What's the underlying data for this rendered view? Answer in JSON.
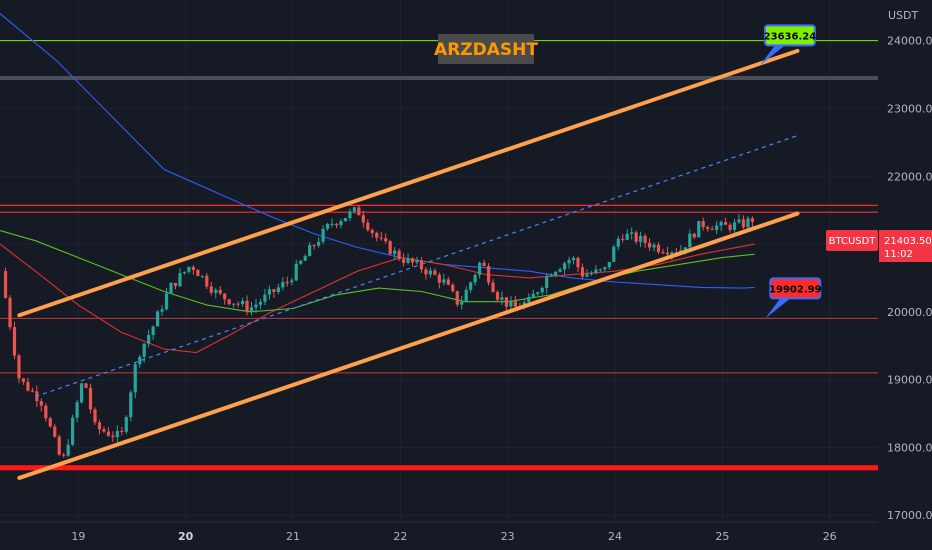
{
  "title": "ARZDASHT",
  "symbol": "BTCUSDT",
  "currency": "USDT",
  "last_price": "21403.50",
  "countdown": "11:02",
  "colors": {
    "background": "#161a25",
    "up": "#26a69a",
    "down": "#ef5350",
    "channel": "#ffa04c",
    "target": "#7ff000",
    "support": "#ff1a1a"
  },
  "chart_data": {
    "type": "candlestick",
    "ylim": [
      16900,
      24600
    ],
    "y_ticks": [
      "17000.00",
      "18000.00",
      "19000.00",
      "20000.00",
      "21000.00",
      "22000.00",
      "23000.00",
      "24000.00"
    ],
    "x_ticks": [
      {
        "label": "19",
        "x": 19
      },
      {
        "label": "20",
        "x": 20,
        "bold": true
      },
      {
        "label": "21",
        "x": 21
      },
      {
        "label": "22",
        "x": 22
      },
      {
        "label": "23",
        "x": 23
      },
      {
        "label": "24",
        "x": 24
      },
      {
        "label": "25",
        "x": 25
      },
      {
        "label": "26",
        "x": 26
      }
    ],
    "xlim": [
      18.27,
      26.45
    ],
    "anchors": [
      [
        18.28,
        20600
      ],
      [
        18.45,
        19000
      ],
      [
        18.65,
        18700
      ],
      [
        18.85,
        17750
      ],
      [
        19.05,
        19050
      ],
      [
        19.15,
        18300
      ],
      [
        19.3,
        18200
      ],
      [
        19.4,
        18150
      ],
      [
        19.55,
        19350
      ],
      [
        19.7,
        19800
      ],
      [
        19.85,
        20350
      ],
      [
        20.05,
        20700
      ],
      [
        20.3,
        20250
      ],
      [
        20.6,
        20050
      ],
      [
        20.95,
        20450
      ],
      [
        21.15,
        20900
      ],
      [
        21.35,
        21300
      ],
      [
        21.6,
        21500
      ],
      [
        21.8,
        21050
      ],
      [
        22.0,
        20800
      ],
      [
        22.2,
        20650
      ],
      [
        22.4,
        20450
      ],
      [
        22.55,
        20100
      ],
      [
        22.75,
        20750
      ],
      [
        22.9,
        20250
      ],
      [
        23.05,
        20050
      ],
      [
        23.2,
        20150
      ],
      [
        23.4,
        20600
      ],
      [
        23.6,
        20800
      ],
      [
        23.7,
        20550
      ],
      [
        23.9,
        20600
      ],
      [
        24.05,
        21150
      ],
      [
        24.25,
        21050
      ],
      [
        24.4,
        20950
      ],
      [
        24.6,
        20900
      ],
      [
        24.8,
        21300
      ],
      [
        25.0,
        21250
      ],
      [
        25.2,
        21300
      ],
      [
        25.32,
        21403.5
      ]
    ],
    "levels": [
      {
        "name": "target-level",
        "price": 24000,
        "color": "#7ff000",
        "width": 1
      },
      {
        "name": "gray-band",
        "price": 23450,
        "color": "#4a4e59",
        "width": 4
      },
      {
        "name": "resistance-upper",
        "price": 21570,
        "color": "#ff2b2b",
        "width": 1.2
      },
      {
        "name": "resistance-lower",
        "price": 21470,
        "color": "#ff2b2b",
        "width": 1.2
      },
      {
        "name": "level-19902",
        "price": 19902.99,
        "color": "#c23a3a",
        "width": 1
      },
      {
        "name": "level-19100",
        "price": 19100,
        "color": "#c23a3a",
        "width": 1
      },
      {
        "name": "major-support",
        "price": 17700,
        "color": "#ff1a1a",
        "width": 5
      }
    ],
    "channel_upper": [
      [
        18.45,
        19950
      ],
      [
        25.7,
        23850
      ]
    ],
    "channel_lower": [
      [
        18.45,
        17550
      ],
      [
        25.7,
        21450
      ]
    ],
    "mid_dotted": [
      [
        18.6,
        18750
      ],
      [
        25.7,
        22600
      ]
    ],
    "ma_blue": [
      [
        18.27,
        24400
      ],
      [
        18.8,
        23700
      ],
      [
        19.3,
        22900
      ],
      [
        19.8,
        22100
      ],
      [
        20.3,
        21750
      ],
      [
        20.8,
        21400
      ],
      [
        21.2,
        21150
      ],
      [
        21.6,
        20950
      ],
      [
        22.0,
        20800
      ],
      [
        22.4,
        20700
      ],
      [
        22.8,
        20650
      ],
      [
        23.2,
        20600
      ],
      [
        23.6,
        20500
      ],
      [
        24.0,
        20440
      ],
      [
        24.4,
        20400
      ],
      [
        24.8,
        20360
      ],
      [
        25.2,
        20350
      ],
      [
        25.3,
        20360
      ]
    ],
    "ma_red": [
      [
        18.27,
        21000
      ],
      [
        18.6,
        20600
      ],
      [
        19.0,
        20100
      ],
      [
        19.4,
        19700
      ],
      [
        19.8,
        19450
      ],
      [
        20.1,
        19400
      ],
      [
        20.4,
        19650
      ],
      [
        20.8,
        20000
      ],
      [
        21.2,
        20300
      ],
      [
        21.6,
        20600
      ],
      [
        22.0,
        20800
      ],
      [
        22.4,
        20700
      ],
      [
        22.8,
        20550
      ],
      [
        23.2,
        20500
      ],
      [
        23.6,
        20550
      ],
      [
        24.0,
        20600
      ],
      [
        24.4,
        20700
      ],
      [
        24.8,
        20850
      ],
      [
        25.3,
        21000
      ]
    ],
    "ma_green": [
      [
        18.27,
        21200
      ],
      [
        18.6,
        21050
      ],
      [
        19.0,
        20800
      ],
      [
        19.4,
        20550
      ],
      [
        19.8,
        20300
      ],
      [
        20.2,
        20100
      ],
      [
        20.6,
        20000
      ],
      [
        21.0,
        20050
      ],
      [
        21.4,
        20250
      ],
      [
        21.8,
        20350
      ],
      [
        22.2,
        20300
      ],
      [
        22.6,
        20150
      ],
      [
        23.0,
        20150
      ],
      [
        23.4,
        20250
      ],
      [
        23.8,
        20450
      ],
      [
        24.2,
        20600
      ],
      [
        24.6,
        20700
      ],
      [
        25.0,
        20800
      ],
      [
        25.3,
        20850
      ]
    ],
    "callouts": [
      {
        "name": "target-callout",
        "label": "23636.24",
        "price": 23636.24,
        "x": 25.35,
        "bg": "#7ff000",
        "border": "#3b6cff",
        "text": "#000000"
      },
      {
        "name": "support-callout",
        "label": "19902.99",
        "price": 19902.99,
        "x": 25.4,
        "bg": "#ff2b2b",
        "border": "#3b6cff",
        "text": "#000000"
      }
    ]
  }
}
